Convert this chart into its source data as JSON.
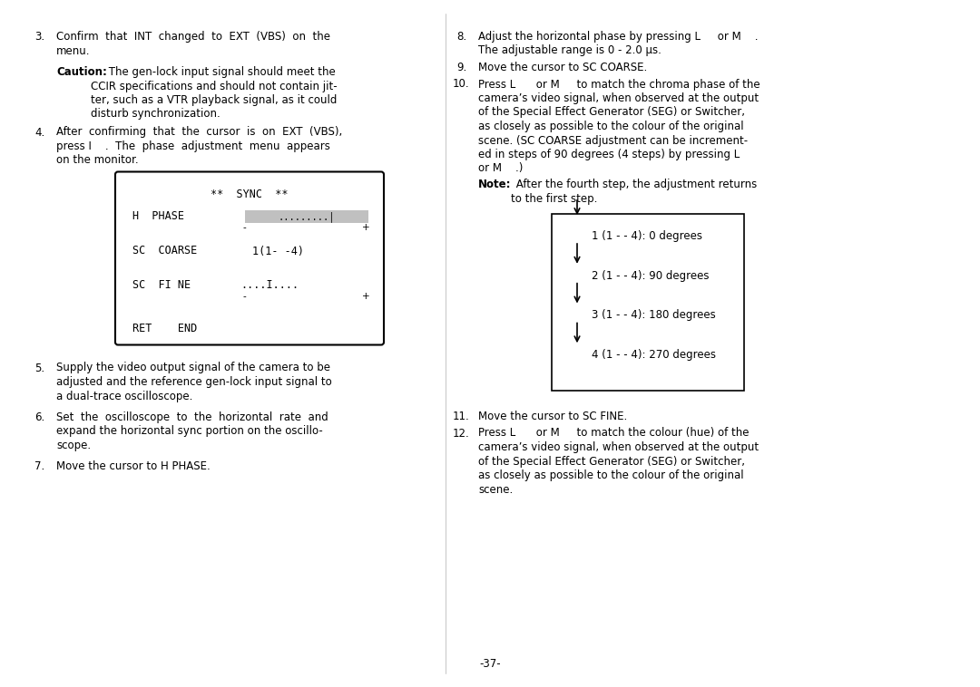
{
  "bg_color": "#ffffff",
  "text_color": "#000000",
  "page_number": "-37-",
  "fs_main": 8.5,
  "fs_small": 7.5,
  "fs_mono": 8.0,
  "degree_box_steps": [
    "1 (1 - - 4): 0 degrees",
    "2 (1 - - 4): 90 degrees",
    "3 (1 - - 4): 180 degrees",
    "4 (1 - - 4): 270 degrees"
  ]
}
